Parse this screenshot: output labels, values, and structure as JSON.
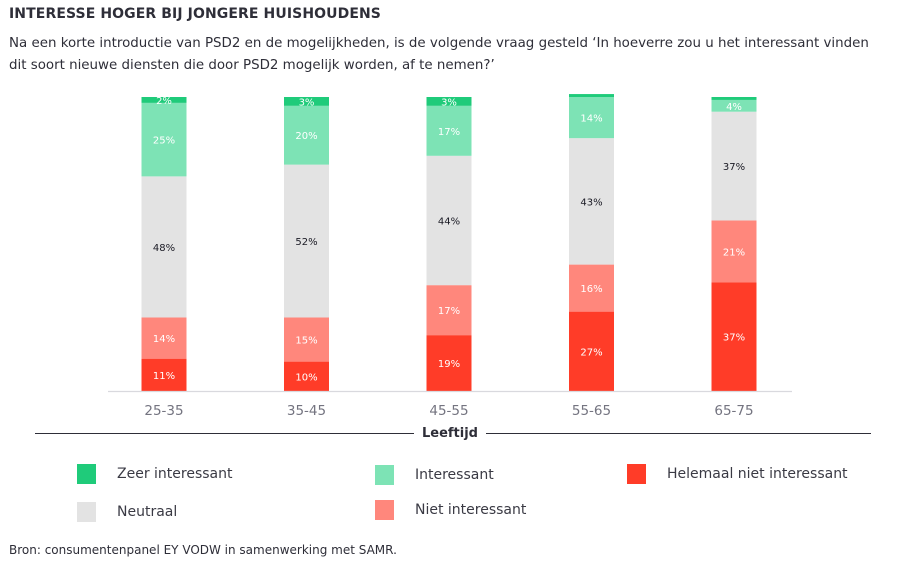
{
  "header": {
    "title": "INTERESSE HOGER BIJ JONGERE HUISHOUDENS",
    "subtitle": "Na een korte introductie van PSD2 en de mogelijkheden, is de volgende vraag gesteld ‘In hoeverre zou u het interessant vinden dit soort nieuwe diensten die door PSD2 mogelijk worden, af te nemen?’"
  },
  "footer": {
    "source": "Bron: consumentenpanel EY VODW in samenwerking met SAMR."
  },
  "chart_data": {
    "type": "bar",
    "stacked": true,
    "orientation": "vertical",
    "title": "INTERESSE HOGER BIJ JONGERE HUISHOUDENS",
    "xlabel": "Leeftijd",
    "ylabel": "",
    "ylim": [
      0,
      100
    ],
    "unit": "%",
    "grid": false,
    "legend_position": "bottom",
    "categories": [
      "25-35",
      "35-45",
      "45-55",
      "55-65",
      "65-75"
    ],
    "series": [
      {
        "name": "Helemaal niet interessant",
        "color": "#ff3c28",
        "label_color": "#ffffff",
        "values": [
          11,
          10,
          19,
          27,
          37
        ],
        "labels": [
          "11%",
          "10%",
          "19%",
          "27%",
          "37%"
        ]
      },
      {
        "name": "Niet interessant",
        "color": "#ff877c",
        "label_color": "#ffffff",
        "values": [
          14,
          15,
          17,
          16,
          21
        ],
        "labels": [
          "14%",
          "15%",
          "17%",
          "16%",
          "21%"
        ]
      },
      {
        "name": "Neutraal",
        "color": "#e3e3e3",
        "label_color": "#1a1a24",
        "values": [
          48,
          52,
          44,
          43,
          37
        ],
        "labels": [
          "48%",
          "52%",
          "44%",
          "43%",
          "37%"
        ]
      },
      {
        "name": "Interessant",
        "color": "#7de3b5",
        "label_color": "#ffffff",
        "values": [
          25,
          20,
          17,
          14,
          4
        ],
        "labels": [
          "25%",
          "20%",
          "17%",
          "14%",
          "4%"
        ]
      },
      {
        "name": "Zeer interessant",
        "color": "#1fcb7a",
        "label_color": "#ffffff",
        "values": [
          2,
          3,
          3,
          1,
          1
        ],
        "labels": [
          "2%",
          "3%",
          "3%",
          "",
          ""
        ]
      }
    ],
    "legend": [
      {
        "name": "Zeer interessant",
        "color": "#1fcb7a"
      },
      {
        "name": "Interessant",
        "color": "#7de3b5"
      },
      {
        "name": "Helemaal niet interessant",
        "color": "#ff3c28"
      },
      {
        "name": "Neutraal",
        "color": "#e3e3e3"
      },
      {
        "name": "Niet interessant",
        "color": "#ff877c"
      }
    ]
  }
}
